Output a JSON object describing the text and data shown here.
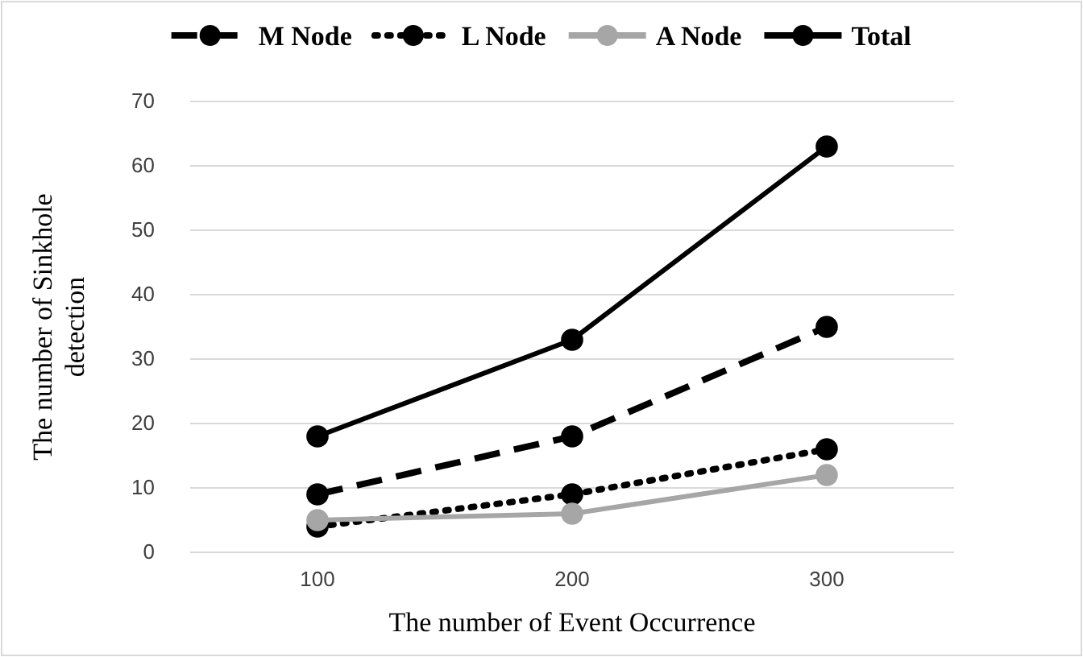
{
  "chart_data": {
    "type": "line",
    "xlabel": "The number of Event Occurrence",
    "ylabel": "The number of Sinkhole detection",
    "categories": [
      "100",
      "200",
      "300"
    ],
    "ylim": [
      0,
      70
    ],
    "yticks": [
      0,
      10,
      20,
      30,
      40,
      50,
      60,
      70
    ],
    "grid": "y",
    "legend": "top",
    "marker": "circle",
    "series": [
      {
        "name": "M Node",
        "color": "#000000",
        "line_style": "dashed",
        "values": [
          9,
          18,
          35
        ]
      },
      {
        "name": "L Node",
        "color": "#000000",
        "line_style": "dotted",
        "values": [
          4,
          9,
          16
        ]
      },
      {
        "name": "A Node",
        "color": "#a6a6a6",
        "line_style": "solid",
        "values": [
          5,
          6,
          12
        ]
      },
      {
        "name": "Total",
        "color": "#000000",
        "line_style": "solid",
        "values": [
          18,
          33,
          63
        ]
      }
    ]
  }
}
